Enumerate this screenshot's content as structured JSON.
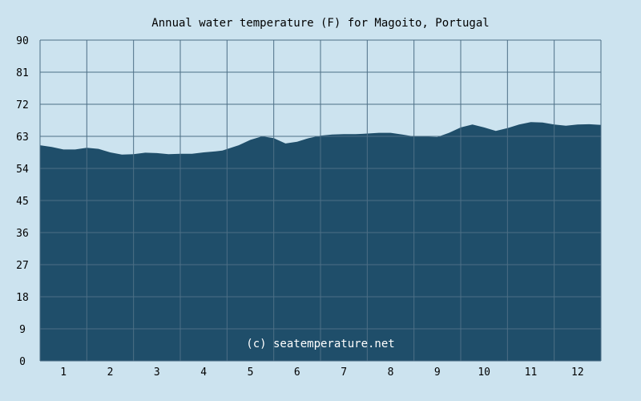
{
  "chart_data": {
    "type": "area",
    "title": "Annual water temperature (F) for Magoito, Portugal",
    "xlabel": "",
    "ylabel": "",
    "categories": [
      "1",
      "2",
      "3",
      "4",
      "5",
      "6",
      "7",
      "8",
      "9",
      "10",
      "11",
      "12"
    ],
    "yticks": [
      "0",
      "9",
      "18",
      "27",
      "36",
      "45",
      "54",
      "63",
      "72",
      "81",
      "90"
    ],
    "ylim": [
      0,
      90
    ],
    "xlim": [
      0.5,
      12.5
    ],
    "grid": true,
    "series": [
      {
        "x": [
          0.5,
          0.75,
          1.0,
          1.25,
          1.5,
          1.75,
          2.0,
          2.25,
          2.5,
          2.75,
          3.0,
          3.25,
          3.5,
          3.75,
          4.0,
          4.25,
          4.4,
          4.75,
          5.0,
          5.25,
          5.5,
          5.75,
          6.0,
          6.25,
          6.5,
          6.75,
          7.0,
          7.25,
          7.4,
          7.75,
          8.0,
          8.25,
          8.45,
          8.75,
          9.0,
          9.25,
          9.5,
          9.75,
          10.0,
          10.25,
          10.5,
          10.75,
          11.0,
          11.25,
          11.5,
          11.75,
          12.0,
          12.25,
          12.5
        ],
        "values": [
          60.5,
          60.0,
          59.3,
          59.3,
          59.8,
          59.5,
          58.5,
          57.9,
          58.0,
          58.4,
          58.3,
          58.0,
          58.1,
          58.1,
          58.5,
          58.8,
          59.0,
          60.5,
          62.0,
          63.0,
          62.5,
          61.0,
          61.5,
          62.5,
          63.2,
          63.5,
          63.6,
          63.6,
          63.7,
          64.0,
          64.0,
          63.5,
          63.1,
          62.9,
          62.8,
          64.0,
          65.5,
          66.3,
          65.5,
          64.5,
          65.3,
          66.3,
          67.0,
          66.9,
          66.3,
          66.0,
          66.3,
          66.4,
          66.2
        ]
      }
    ],
    "colors": {
      "fill": "#1f4e6a",
      "background": "#cce3ef",
      "grid": "#4d6f86"
    }
  },
  "credit": "(c) seatemperature.net"
}
